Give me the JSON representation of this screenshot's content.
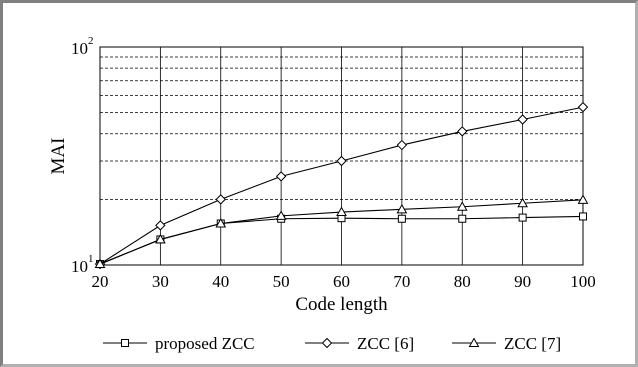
{
  "chart_data": {
    "type": "line",
    "title": "",
    "xlabel": "Code length",
    "ylabel": "MAI",
    "x": [
      20,
      30,
      40,
      50,
      60,
      70,
      80,
      90,
      100
    ],
    "xlim": [
      20,
      100
    ],
    "ylim": [
      10,
      100
    ],
    "yscale": "log",
    "x_ticks": [
      "20",
      "30",
      "40",
      "50",
      "60",
      "70",
      "80",
      "90",
      "100"
    ],
    "y_ticks": [
      {
        "base": "10",
        "exp": "1"
      },
      {
        "base": "10",
        "exp": "2"
      }
    ],
    "grid": "dashed",
    "legend_position": "bottom",
    "series": [
      {
        "name": "proposed ZCC",
        "marker": "square",
        "values": [
          10.1,
          13.1,
          15.5,
          16.3,
          16.4,
          16.3,
          16.3,
          16.5,
          16.7
        ]
      },
      {
        "name": "ZCC [6]",
        "marker": "diamond",
        "values": [
          10.1,
          15.2,
          20.0,
          25.5,
          30.0,
          35.5,
          41.0,
          46.5,
          53.0
        ]
      },
      {
        "name": "ZCC [7]",
        "marker": "triangle",
        "values": [
          10.1,
          13.1,
          15.5,
          16.8,
          17.5,
          18.0,
          18.5,
          19.2,
          19.9
        ]
      }
    ]
  }
}
